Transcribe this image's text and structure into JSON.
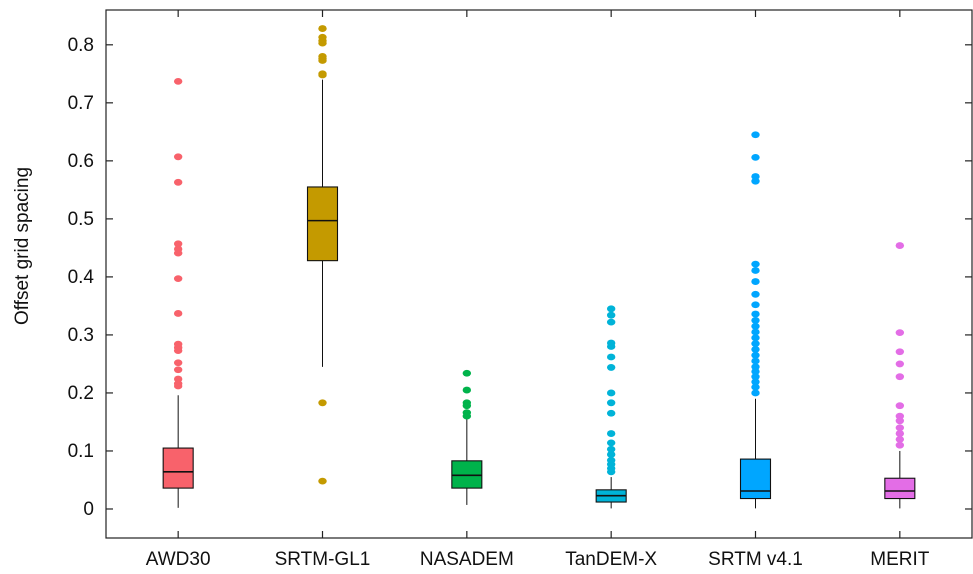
{
  "chart_data": {
    "type": "boxplot",
    "title": "",
    "xlabel": "",
    "ylabel": "Offset grid spacing",
    "ylim": [
      -0.05,
      0.86
    ],
    "yticks": [
      0,
      0.1,
      0.2,
      0.3,
      0.4,
      0.5,
      0.6,
      0.7,
      0.8
    ],
    "ytick_labels": [
      "0",
      "0.1",
      "0.2",
      "0.3",
      "0.4",
      "0.5",
      "0.6",
      "0.7",
      "0.8"
    ],
    "grid": false,
    "legend": "none",
    "categories": [
      "AWD30",
      "SRTM-GL1",
      "NASADEM",
      "TanDEM-X",
      "SRTM v4.1",
      "MERIT"
    ],
    "series": [
      {
        "color": "#f8626b",
        "q1": 0.036,
        "median": 0.064,
        "q3": 0.105,
        "whisker_low": 0.002,
        "whisker_high": 0.196,
        "outliers": [
          0.737,
          0.607,
          0.563,
          0.457,
          0.448,
          0.441,
          0.397,
          0.337,
          0.284,
          0.278,
          0.273,
          0.252,
          0.24,
          0.224,
          0.216,
          0.212
        ]
      },
      {
        "color": "#c49a00",
        "q1": 0.428,
        "median": 0.497,
        "q3": 0.555,
        "whisker_low": 0.245,
        "whisker_high": 0.74,
        "outliers": [
          0.828,
          0.813,
          0.807,
          0.803,
          0.78,
          0.776,
          0.773,
          0.75,
          0.748,
          0.183,
          0.048
        ]
      },
      {
        "color": "#00b34b",
        "q1": 0.036,
        "median": 0.058,
        "q3": 0.083,
        "whisker_low": 0.007,
        "whisker_high": 0.156,
        "outliers": [
          0.234,
          0.205,
          0.183,
          0.178,
          0.166,
          0.16
        ]
      },
      {
        "color": "#00b3d8",
        "q1": 0.012,
        "median": 0.023,
        "q3": 0.033,
        "whisker_low": 0.001,
        "whisker_high": 0.055,
        "outliers": [
          0.345,
          0.334,
          0.322,
          0.286,
          0.28,
          0.262,
          0.244,
          0.2,
          0.183,
          0.165,
          0.13,
          0.114,
          0.103,
          0.094,
          0.084,
          0.077,
          0.07,
          0.064
        ]
      },
      {
        "color": "#00a6ff",
        "q1": 0.018,
        "median": 0.031,
        "q3": 0.086,
        "whisker_low": 0.001,
        "whisker_high": 0.19,
        "outliers": [
          0.645,
          0.606,
          0.573,
          0.565,
          0.422,
          0.411,
          0.392,
          0.37,
          0.352,
          0.336,
          0.325,
          0.315,
          0.305,
          0.295,
          0.285,
          0.275,
          0.265,
          0.255,
          0.245,
          0.237,
          0.228,
          0.219,
          0.21,
          0.2
        ]
      },
      {
        "color": "#e36de6",
        "q1": 0.018,
        "median": 0.031,
        "q3": 0.053,
        "whisker_low": 0.001,
        "whisker_high": 0.1,
        "outliers": [
          0.454,
          0.304,
          0.271,
          0.25,
          0.228,
          0.178,
          0.16,
          0.152,
          0.14,
          0.13,
          0.12,
          0.11
        ]
      }
    ]
  }
}
